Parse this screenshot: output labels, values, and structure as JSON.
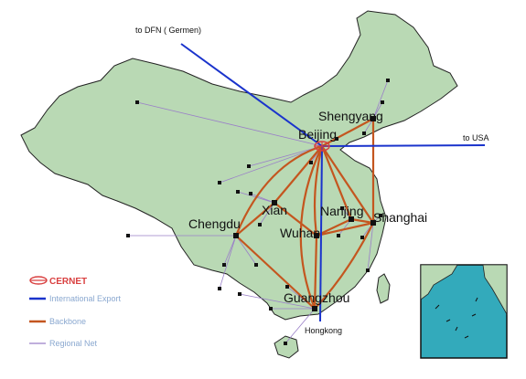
{
  "colors": {
    "land": "#b9d9b4",
    "border": "#222222",
    "sea": "#33aabb",
    "international": "#1a33cc",
    "backbone": "#c4561f",
    "regional": "#9a7fc8",
    "cernet": "#d94040"
  },
  "external_links": {
    "germany": "to DFN ( Germen)",
    "usa": "to USA",
    "hongkong": "Hongkong"
  },
  "cities": {
    "beijing": "Beijing",
    "shenyang": "Shengyang",
    "xian": "Xian",
    "nanjing": "Nanjing",
    "shanghai": "Shanghai",
    "chengdu": "Chengdu",
    "wuhan": "Wuhan",
    "guangzhou": "Guangzhou"
  },
  "legend": {
    "cernet": "CERNET",
    "international": "International Export",
    "backbone": "Backbone",
    "regional": "Regional Net"
  }
}
